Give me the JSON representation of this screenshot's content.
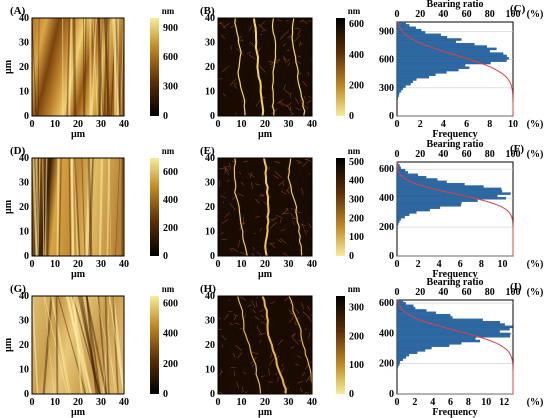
{
  "figure": {
    "rows": [
      {
        "afm_height": {
          "label": "(A)",
          "xlabel": "µm",
          "ylabel": "µm",
          "ticks": [
            "0",
            "10",
            "20",
            "30",
            "40"
          ]
        },
        "height_colorbar": {
          "unit": "nm",
          "ticks": [
            "900",
            "600",
            "300",
            "0"
          ],
          "range": [
            0,
            1000
          ]
        },
        "afm_detail": {
          "label": "(B)",
          "ticks": [
            "0",
            "10",
            "20",
            "30",
            "40"
          ],
          "xlabel": "µm"
        },
        "detail_colorbar": {
          "unit": "nm",
          "ticks": [
            "600",
            "400",
            "200",
            "0"
          ],
          "range": [
            0,
            640
          ]
        },
        "bearing": {
          "label": "(C)",
          "title": "Bearing ratio",
          "top_ticks": [
            "0",
            "20",
            "40",
            "60",
            "80",
            "100"
          ],
          "top_unit": "(%)",
          "y_ticks": [
            "900",
            "600",
            "300",
            "0"
          ],
          "ymax": 1000,
          "x_ticks": [
            "0",
            "2",
            "4",
            "6",
            "8",
            "10"
          ],
          "xmax": 10,
          "xlabel": "Frequency",
          "right_unit": "(%)",
          "center": 650,
          "sigma": 150,
          "peak": 9.0
        }
      },
      {
        "afm_height": {
          "label": "(D)",
          "xlabel": "µm",
          "ylabel": "µm",
          "ticks": [
            "0",
            "10",
            "20",
            "30",
            "40"
          ]
        },
        "height_colorbar": {
          "unit": "nm",
          "ticks": [
            "600",
            "400",
            "200",
            "0"
          ],
          "range": [
            0,
            700
          ]
        },
        "afm_detail": {
          "label": "(E)",
          "ticks": [
            "0",
            "10",
            "20",
            "30",
            "40"
          ],
          "xlabel": "µm"
        },
        "detail_colorbar": {
          "unit": "nm",
          "ticks": [
            "500",
            "400",
            "300",
            "200",
            "100",
            "0"
          ],
          "range": [
            0,
            520
          ]
        },
        "bearing": {
          "label": "(F)",
          "title": "Bearing ratio",
          "top_ticks": [
            "0",
            "20",
            "40",
            "60",
            "80",
            "100"
          ],
          "top_unit": "(%)",
          "y_ticks": [
            "600",
            "400",
            "200",
            "0"
          ],
          "ymax": 650,
          "x_ticks": [
            "0",
            "2",
            "4",
            "6",
            "8",
            "10"
          ],
          "xmax": 11,
          "xlabel": "Frequency",
          "right_unit": "(%)",
          "center": 430,
          "sigma": 70,
          "peak": 10.5
        }
      },
      {
        "afm_height": {
          "label": "(G)",
          "xlabel": "µm",
          "ylabel": "µm",
          "ticks": [
            "0",
            "10",
            "20",
            "30",
            "40"
          ]
        },
        "height_colorbar": {
          "unit": "nm",
          "ticks": [
            "600",
            "400",
            "200",
            "0"
          ],
          "range": [
            0,
            650
          ]
        },
        "afm_detail": {
          "label": "(H)",
          "ticks": [
            "0",
            "10",
            "20",
            "30",
            "40"
          ],
          "xlabel": "µm"
        },
        "detail_colorbar": {
          "unit": "nm",
          "ticks": [
            "300",
            "200",
            "100",
            "0"
          ],
          "range": [
            0,
            340
          ]
        },
        "bearing": {
          "label": "(I)",
          "title": "Bearing ratio",
          "top_ticks": [
            "0",
            "20",
            "40",
            "60",
            "80",
            "100"
          ],
          "top_unit": "(%)",
          "y_ticks": [
            "600",
            "400",
            "200",
            "0"
          ],
          "ymax": 620,
          "x_ticks": [
            "0",
            "2",
            "4",
            "6",
            "8",
            "10",
            "12"
          ],
          "xmax": 13,
          "xlabel": "Frequency",
          "right_unit": "(%)",
          "center": 420,
          "sigma": 80,
          "peak": 12.5
        }
      }
    ]
  },
  "colors": {
    "afm_dark": "#2a1400",
    "afm_mid": "#a8650f",
    "afm_light": "#f0dc8a",
    "histogram_bar": "#2b6aa8",
    "bearing_curve": "#e04040"
  }
}
